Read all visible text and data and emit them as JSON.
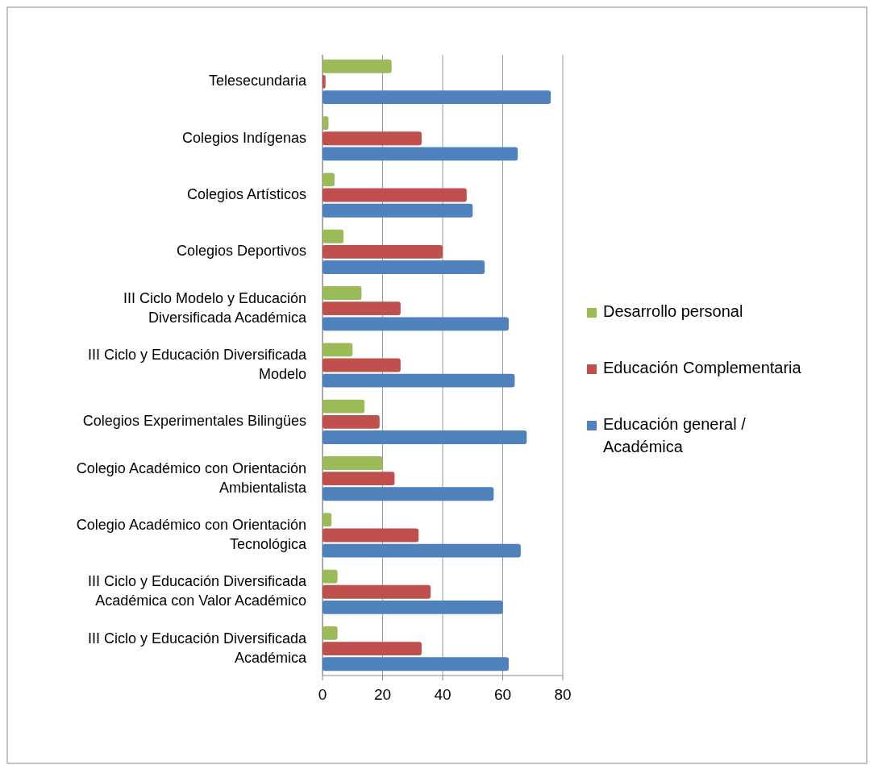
{
  "chart_data": {
    "type": "bar",
    "orientation": "horizontal",
    "categories": [
      "Telesecundaria",
      "Colegios Indígenas",
      "Colegios Artísticos",
      "Colegios Deportivos",
      "III Ciclo Modelo y Educación Diversificada Académica",
      "III Ciclo y Educación Diversificada Modelo",
      "Colegios Experimentales Bilingües",
      "Colegio Académico con Orientación Ambientalista",
      "Colegio Académico con Orientación Tecnológica",
      "III Ciclo y Educación Diversificada Académica con Valor Académico",
      "III Ciclo y Educación Diversificada Académica"
    ],
    "series": [
      {
        "name": "Desarrollo personal",
        "color": "#9bbb59",
        "values": [
          23,
          2,
          4,
          7,
          13,
          10,
          14,
          20,
          3,
          5,
          5
        ]
      },
      {
        "name": "Educación Complementaria",
        "color": "#c0504d",
        "values": [
          1,
          33,
          48,
          40,
          26,
          26,
          19,
          24,
          32,
          36,
          33
        ]
      },
      {
        "name": "Educación general / Académica",
        "color": "#4f81bd",
        "values": [
          76,
          65,
          50,
          54,
          62,
          64,
          68,
          57,
          66,
          60,
          62
        ]
      }
    ],
    "xlim": [
      0,
      80
    ],
    "xticks": [
      0,
      20,
      40,
      60,
      80
    ],
    "grid": "x",
    "legend": "right"
  }
}
